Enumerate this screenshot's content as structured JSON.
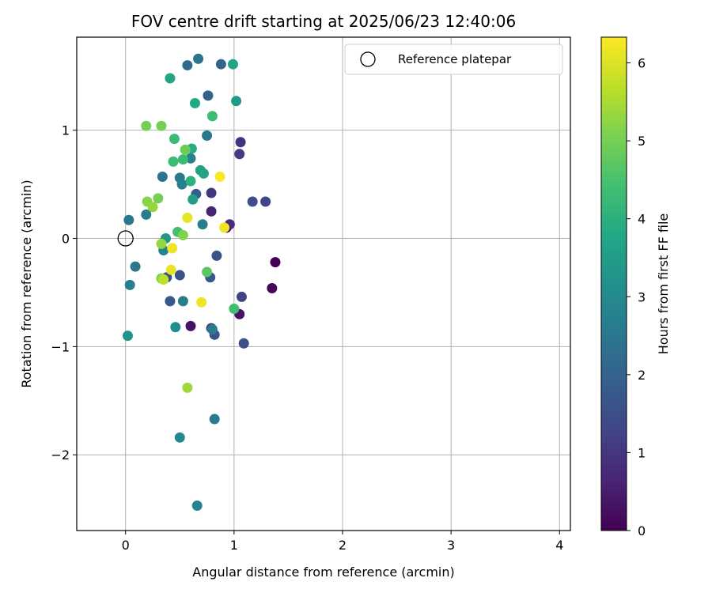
{
  "chart_data": {
    "type": "scatter",
    "title": "FOV centre drift starting at 2025/06/23 12:40:06",
    "xlabel": "Angular distance from reference (arcmin)",
    "ylabel": "Rotation from reference (arcmin)",
    "xlim": [
      -0.45,
      4.1
    ],
    "ylim": [
      -2.7,
      1.86
    ],
    "xticks": [
      0,
      1,
      2,
      3,
      4
    ],
    "yticks": [
      -2,
      -1,
      0,
      1
    ],
    "xtick_labels": [
      "0",
      "1",
      "2",
      "3",
      "4"
    ],
    "ytick_labels": [
      "−2",
      "−1",
      "0",
      "1"
    ],
    "grid": true,
    "legend": {
      "position": "top-right",
      "label": "Reference platepar"
    },
    "reference_point": {
      "x": 0,
      "y": 0
    },
    "colorbar": {
      "label": "Hours from first FF file",
      "colormap": "viridis",
      "range": [
        0,
        6.33
      ],
      "ticks": [
        0,
        1,
        2,
        3,
        4,
        5,
        6
      ],
      "tick_labels": [
        "0",
        "1",
        "2",
        "3",
        "4",
        "5",
        "6"
      ]
    },
    "points": [
      {
        "x": 1.38,
        "y": -0.22,
        "c": 0.0
      },
      {
        "x": 1.35,
        "y": -0.46,
        "c": 0.1
      },
      {
        "x": 1.05,
        "y": -0.7,
        "c": 0.3
      },
      {
        "x": 0.6,
        "y": -0.81,
        "c": 0.3
      },
      {
        "x": 0.93,
        "y": 0.1,
        "c": 0.3
      },
      {
        "x": 0.79,
        "y": 0.25,
        "c": 0.6
      },
      {
        "x": 1.06,
        "y": 0.89,
        "c": 0.9
      },
      {
        "x": 1.05,
        "y": 0.78,
        "c": 1.1
      },
      {
        "x": 0.96,
        "y": 0.13,
        "c": 0.8
      },
      {
        "x": 0.79,
        "y": 0.42,
        "c": 1.0
      },
      {
        "x": 0.79,
        "y": -0.83,
        "c": 1.1
      },
      {
        "x": 1.09,
        "y": -0.97,
        "c": 1.5
      },
      {
        "x": 1.07,
        "y": -0.54,
        "c": 1.3
      },
      {
        "x": 1.17,
        "y": 0.34,
        "c": 1.5
      },
      {
        "x": 1.29,
        "y": 0.34,
        "c": 1.3
      },
      {
        "x": 0.82,
        "y": -0.89,
        "c": 1.6
      },
      {
        "x": 0.84,
        "y": -0.16,
        "c": 1.6
      },
      {
        "x": 0.78,
        "y": -0.36,
        "c": 1.7
      },
      {
        "x": 0.5,
        "y": -0.34,
        "c": 1.6
      },
      {
        "x": 0.38,
        "y": -0.36,
        "c": 1.6
      },
      {
        "x": 0.41,
        "y": -0.58,
        "c": 1.7
      },
      {
        "x": 0.65,
        "y": 0.41,
        "c": 1.8
      },
      {
        "x": 0.76,
        "y": 1.32,
        "c": 2.0
      },
      {
        "x": 0.88,
        "y": 1.61,
        "c": 2.1
      },
      {
        "x": 0.57,
        "y": 1.6,
        "c": 2.2
      },
      {
        "x": 0.67,
        "y": 1.66,
        "c": 2.4
      },
      {
        "x": 0.75,
        "y": 0.95,
        "c": 2.5
      },
      {
        "x": 0.6,
        "y": 0.74,
        "c": 2.7
      },
      {
        "x": 0.5,
        "y": 0.56,
        "c": 2.6
      },
      {
        "x": 0.52,
        "y": 0.5,
        "c": 2.7
      },
      {
        "x": 0.34,
        "y": 0.57,
        "c": 2.4
      },
      {
        "x": 0.03,
        "y": 0.17,
        "c": 2.5
      },
      {
        "x": 0.19,
        "y": 0.22,
        "c": 2.6
      },
      {
        "x": 0.09,
        "y": -0.26,
        "c": 2.5
      },
      {
        "x": 0.04,
        "y": -0.43,
        "c": 2.7
      },
      {
        "x": 0.35,
        "y": -0.11,
        "c": 2.8
      },
      {
        "x": 0.71,
        "y": 0.13,
        "c": 2.6
      },
      {
        "x": 0.53,
        "y": -0.58,
        "c": 2.6
      },
      {
        "x": 0.8,
        "y": -0.84,
        "c": 2.6
      },
      {
        "x": 0.82,
        "y": -1.67,
        "c": 2.6
      },
      {
        "x": 0.5,
        "y": -1.84,
        "c": 2.9
      },
      {
        "x": 0.66,
        "y": -2.47,
        "c": 2.8
      },
      {
        "x": 0.46,
        "y": -0.82,
        "c": 3.1
      },
      {
        "x": 0.02,
        "y": -0.9,
        "c": 3.2
      },
      {
        "x": 0.37,
        "y": 0.0,
        "c": 3.3
      },
      {
        "x": 1.02,
        "y": 1.27,
        "c": 3.4
      },
      {
        "x": 0.62,
        "y": 0.36,
        "c": 3.5
      },
      {
        "x": 0.41,
        "y": 1.48,
        "c": 3.7
      },
      {
        "x": 0.69,
        "y": 0.63,
        "c": 3.6
      },
      {
        "x": 0.72,
        "y": 0.6,
        "c": 3.7
      },
      {
        "x": 0.99,
        "y": 1.61,
        "c": 3.7
      },
      {
        "x": 0.64,
        "y": 1.25,
        "c": 3.8
      },
      {
        "x": 0.61,
        "y": 0.83,
        "c": 3.9
      },
      {
        "x": 0.6,
        "y": 0.53,
        "c": 4.0
      },
      {
        "x": 0.8,
        "y": 1.13,
        "c": 4.3
      },
      {
        "x": 0.53,
        "y": 0.73,
        "c": 4.3
      },
      {
        "x": 0.45,
        "y": 0.92,
        "c": 4.3
      },
      {
        "x": 0.44,
        "y": 0.71,
        "c": 4.3
      },
      {
        "x": 1.0,
        "y": -0.65,
        "c": 4.4
      },
      {
        "x": 0.48,
        "y": 0.06,
        "c": 4.4
      },
      {
        "x": 0.55,
        "y": 0.82,
        "c": 4.9
      },
      {
        "x": 0.75,
        "y": -0.31,
        "c": 4.7
      },
      {
        "x": 0.19,
        "y": 1.04,
        "c": 5.0
      },
      {
        "x": 0.33,
        "y": 1.04,
        "c": 5.0
      },
      {
        "x": 0.3,
        "y": 0.37,
        "c": 5.0
      },
      {
        "x": 0.2,
        "y": 0.34,
        "c": 5.2
      },
      {
        "x": 0.25,
        "y": 0.29,
        "c": 5.3
      },
      {
        "x": 0.53,
        "y": 0.03,
        "c": 5.1
      },
      {
        "x": 0.33,
        "y": -0.37,
        "c": 5.1
      },
      {
        "x": 0.33,
        "y": -0.05,
        "c": 5.3
      },
      {
        "x": 0.57,
        "y": -1.38,
        "c": 5.4
      },
      {
        "x": 0.35,
        "y": -0.38,
        "c": 5.7
      },
      {
        "x": 0.42,
        "y": -0.29,
        "c": 6.1
      },
      {
        "x": 0.57,
        "y": 0.19,
        "c": 6.1
      },
      {
        "x": 0.43,
        "y": -0.09,
        "c": 6.2
      },
      {
        "x": 0.87,
        "y": 0.57,
        "c": 6.3
      },
      {
        "x": 0.91,
        "y": 0.1,
        "c": 6.2
      },
      {
        "x": 0.7,
        "y": -0.59,
        "c": 6.2
      }
    ]
  }
}
